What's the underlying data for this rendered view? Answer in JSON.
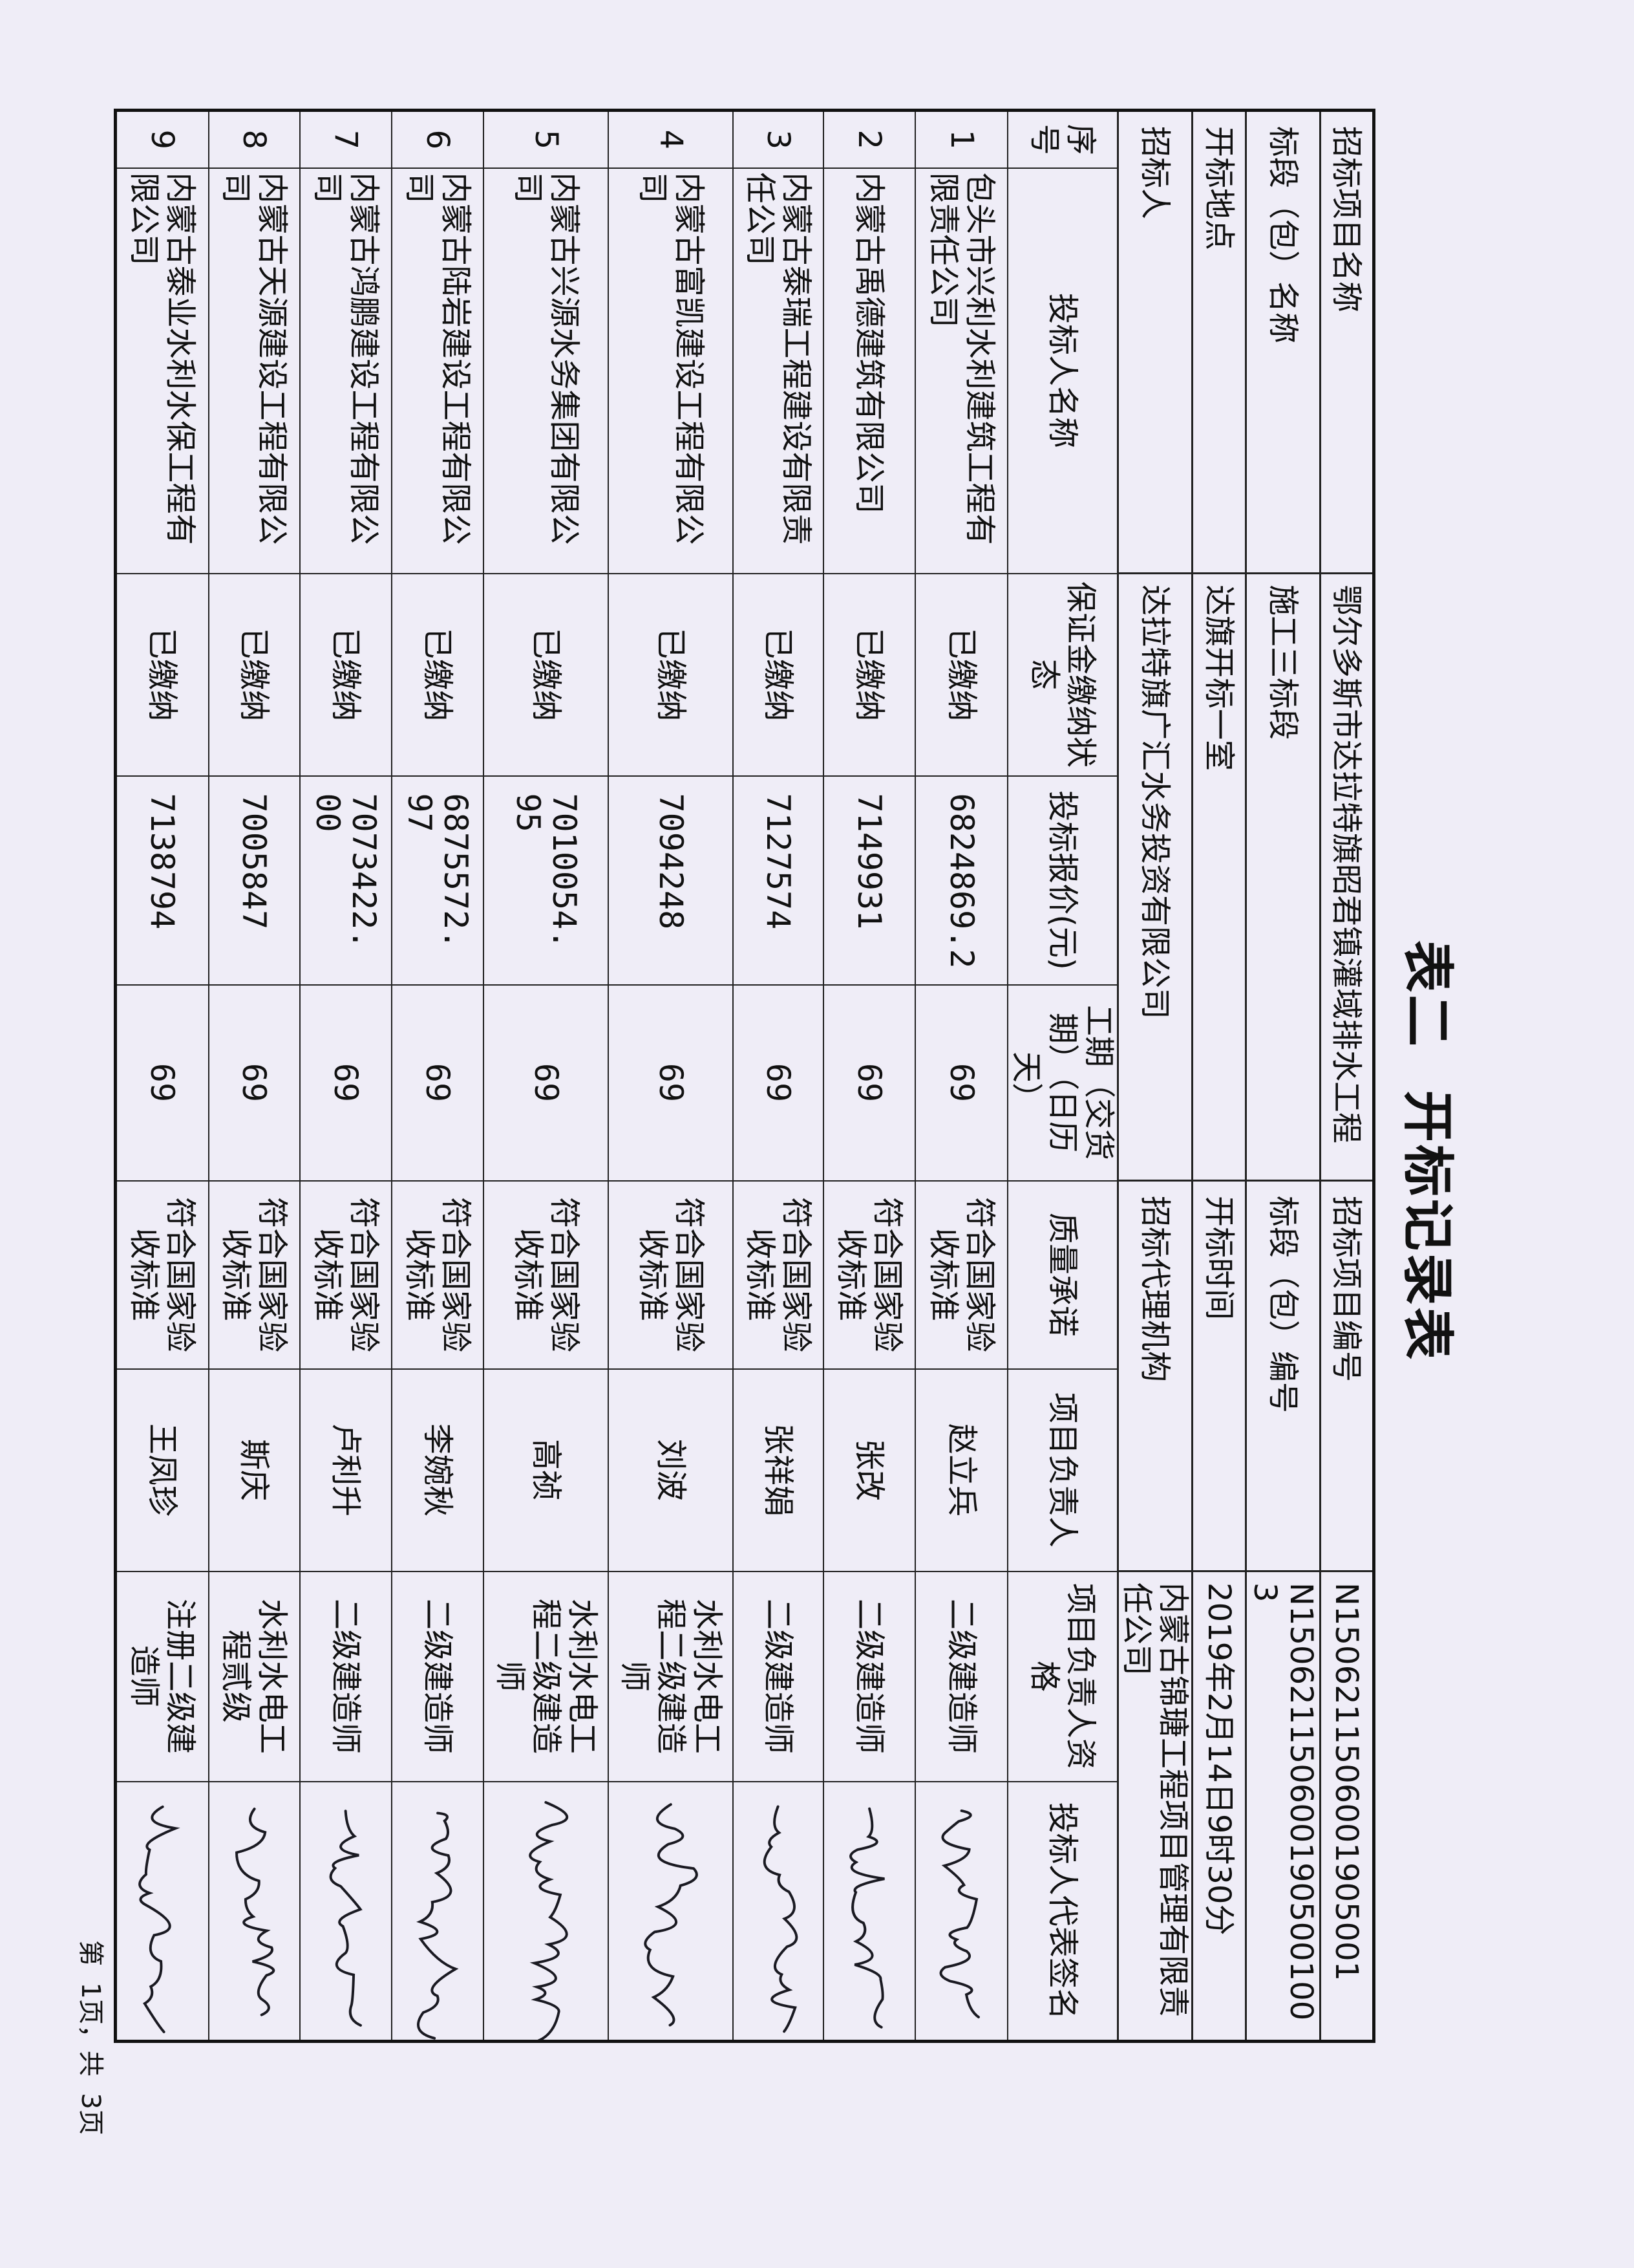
{
  "title": "表二  开标记录表",
  "header": {
    "project_name_label": "招标项目名称",
    "project_name": "鄂尔多斯市达拉特旗昭君镇灌域排水工程",
    "project_no_label": "招标项目编号",
    "project_no": "N1506211506001905001",
    "section_name_label": "标段（包）名称",
    "section_name": "施工三标段",
    "section_no_label": "标段（包）编号",
    "section_no": "N1506211506001905001003",
    "venue_label": "开标地点",
    "venue": "达旗开标一室",
    "time_label": "开标时间",
    "time": "2019年2月14日9时30分",
    "tenderer_label": "招标人",
    "tenderer": "达拉特旗广汇水务投资有限公司",
    "agency_label": "招标代理机构",
    "agency": "内蒙古锦瑭工程项目管理有限责任公司"
  },
  "columns": [
    "序号",
    "投标人名称",
    "保证金缴纳状态",
    "投标报价(元)",
    "工期（交货期）（日历天）",
    "质量承诺",
    "项目负责人",
    "项目负责人资格",
    "投标人代表签名"
  ],
  "rows": [
    {
      "no": "1",
      "bidder": "包头市兴利水利建筑工程有限责任公司",
      "deposit": "已缴纳",
      "price": "6824869.2",
      "duration": "69",
      "quality": "符合国家验收标准",
      "manager": "赵立兵",
      "qualification": "二级建造师",
      "signature": "赵立兵"
    },
    {
      "no": "2",
      "bidder": "内蒙古禹德建筑有限公司",
      "deposit": "已缴纳",
      "price": "7149931",
      "duration": "69",
      "quality": "符合国家验收标准",
      "manager": "张改",
      "qualification": "二级建造师",
      "signature": "张改"
    },
    {
      "no": "3",
      "bidder": "内蒙古泰瑞工程建设有限责任公司",
      "deposit": "已缴纳",
      "price": "7127574",
      "duration": "69",
      "quality": "符合国家验收标准",
      "manager": "张祥娟",
      "qualification": "二级建造师",
      "signature": "张祥娟"
    },
    {
      "no": "4",
      "bidder": "内蒙古富凯建设工程有限公司",
      "deposit": "已缴纳",
      "price": "7094248",
      "duration": "69",
      "quality": "符合国家验收标准",
      "manager": "刘波",
      "qualification": "水利水电工程二级建造师",
      "signature": "刘波"
    },
    {
      "no": "5",
      "bidder": "内蒙古兴源水务集团有限公司",
      "deposit": "已缴纳",
      "price": "7010054. 95",
      "duration": "69",
      "quality": "符合国家验收标准",
      "manager": "高祯",
      "qualification": "水利水电工程二级建造师",
      "signature": "高祯"
    },
    {
      "no": "6",
      "bidder": "内蒙古陆岩建设工程有限公司",
      "deposit": "已缴纳",
      "price": "6875572. 97",
      "duration": "69",
      "quality": "符合国家验收标准",
      "manager": "李婉秋",
      "qualification": "二级建造师",
      "signature": "李婉秋"
    },
    {
      "no": "7",
      "bidder": "内蒙古鸿鹏建设工程有限公司",
      "deposit": "已缴纳",
      "price": "7073422. 00",
      "duration": "69",
      "quality": "符合国家验收标准",
      "manager": "卢利升",
      "qualification": "二级建造师",
      "signature": "卢利升"
    },
    {
      "no": "8",
      "bidder": "内蒙古天源建设工程有限公司",
      "deposit": "已缴纳",
      "price": "7005847",
      "duration": "69",
      "quality": "符合国家验收标准",
      "manager": "斯庆",
      "qualification": "水利水电工程贰级",
      "signature": "斯庆"
    },
    {
      "no": "9",
      "bidder": "内蒙古泰业水利水保工程有限公司",
      "deposit": "已缴纳",
      "price": "7138794",
      "duration": "69",
      "quality": "符合国家验收标准",
      "manager": "王凤珍",
      "qualification": "注册二级建造师",
      "signature": "王凤珍"
    }
  ],
  "footer": "第  1页，共  3页"
}
